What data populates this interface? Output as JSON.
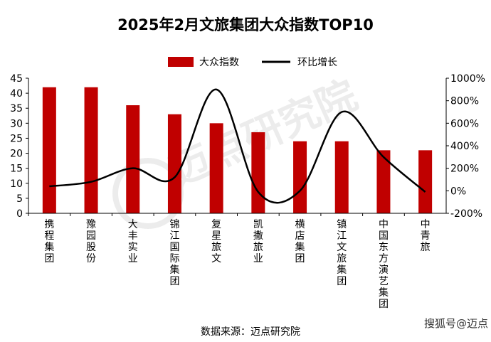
{
  "chart_data": {
    "type": "bar",
    "title": "2025年2月文旅集团大众指数TOP10",
    "categories": [
      "携程集团",
      "豫园股份",
      "大丰实业",
      "锦江国际集团",
      "复星旅文",
      "凯撒旅业",
      "横店集团",
      "镇江文旅集团",
      "中国东方演艺集团",
      "中青旅"
    ],
    "series": [
      {
        "name": "大众指数",
        "type": "bar",
        "axis": "left",
        "color": "#c00000",
        "values": [
          42,
          42,
          36,
          33,
          30,
          27,
          24,
          24,
          21,
          21
        ]
      },
      {
        "name": "环比增长",
        "type": "line",
        "axis": "right",
        "unit": "%",
        "color": "#000000",
        "values": [
          40,
          80,
          200,
          120,
          900,
          -10,
          0,
          700,
          300,
          -10
        ]
      }
    ],
    "y_left": {
      "min": 0,
      "max": 45,
      "step": 5,
      "ticks": [
        "0",
        "5",
        "10",
        "15",
        "20",
        "25",
        "30",
        "35",
        "40",
        "45"
      ]
    },
    "y_right": {
      "min": -200,
      "max": 1000,
      "step": 200,
      "ticks": [
        "-200%",
        "0%",
        "200%",
        "400%",
        "600%",
        "800%",
        "1000%"
      ]
    },
    "grid": false,
    "legend_position": "top-center",
    "source": "数据来源：迈点研究院",
    "watermark": "迈点研究院",
    "footer_brand": "搜狐号@迈点"
  }
}
